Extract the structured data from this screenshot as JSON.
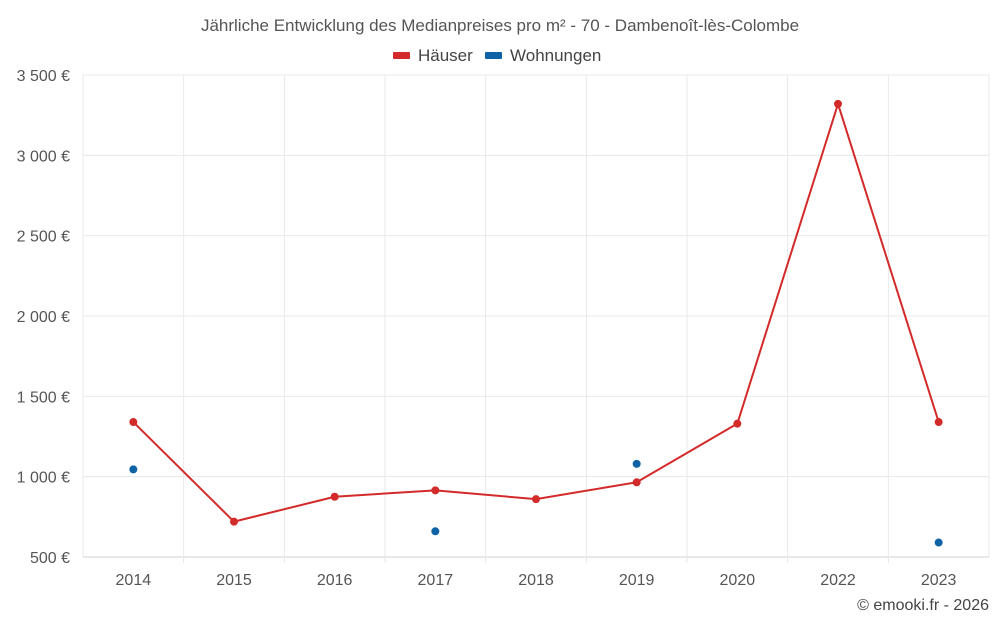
{
  "chart_data": {
    "type": "line",
    "title": "Jährliche Entwicklung des Medianpreises pro m² - 70 - Dambenoît-lès-Colombe",
    "categories": [
      "2014",
      "2015",
      "2016",
      "2017",
      "2018",
      "2019",
      "2020",
      "2022",
      "2023"
    ],
    "ylim": [
      500,
      3500
    ],
    "yticks": [
      500,
      1000,
      1500,
      2000,
      2500,
      3000,
      3500
    ],
    "ytick_labels": [
      "500 €",
      "1 000 €",
      "1 500 €",
      "2 000 €",
      "2 500 €",
      "3 000 €",
      "3 500 €"
    ],
    "grid": true,
    "legend_position": "top-center",
    "series": [
      {
        "name": "Häuser",
        "color": "#d32a2a",
        "style": "line",
        "values": [
          1340,
          720,
          875,
          915,
          860,
          965,
          1330,
          3320,
          1340
        ]
      },
      {
        "name": "Wohnungen",
        "color": "#0d63a5",
        "style": "points",
        "values": [
          1045,
          null,
          null,
          660,
          null,
          1080,
          null,
          null,
          590
        ]
      }
    ],
    "credit": "© emooki.fr - 2026"
  }
}
